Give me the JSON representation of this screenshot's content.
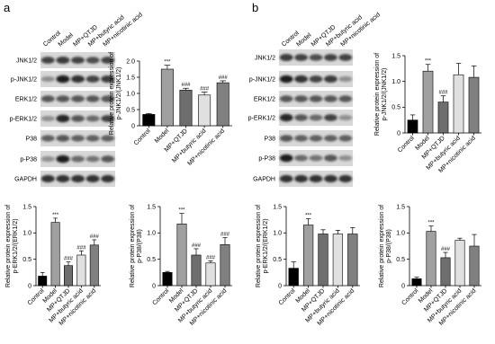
{
  "blots": [
    {
      "label": "a",
      "lanes": [
        "Control",
        "Model",
        "MP+QTJD",
        "MP+butyric acid",
        "MP+nicotinic acid"
      ],
      "rows": [
        "JNK1/2",
        "p-JNK1/2",
        "ERK1/2",
        "p-ERK1/2",
        "P38",
        "p-P38",
        "GAPDH"
      ]
    },
    {
      "label": "b",
      "lanes": [
        "Control",
        "Model",
        "MP+QTJD",
        "MP+butyric acid",
        "MP+nicotinic acid"
      ],
      "rows": [
        "JNK1/2",
        "p-JNK1/2",
        "ERK1/2",
        "p-ERK1/2",
        "P38",
        "p-P38",
        "GAPDH"
      ]
    }
  ],
  "chart_data": [
    {
      "type": "bar",
      "ylabel": [
        "Relative protein expression of",
        "p-JNK1/2/(JNK1/2)"
      ],
      "categories": [
        "Control",
        "Model",
        "MP+QTJD",
        "MP+butyric acid",
        "MP+nicotinic acid"
      ],
      "values": [
        0.35,
        1.75,
        1.1,
        0.95,
        1.33
      ],
      "errors": [
        0.03,
        0.12,
        0.06,
        0.09,
        0.06
      ],
      "annotations": [
        null,
        "***",
        "###",
        "###",
        "###"
      ],
      "colors": [
        "#000000",
        "#a0a0a0",
        "#6e6e6e",
        "#e0e0e0",
        "#808080"
      ],
      "ylim": [
        0,
        2
      ],
      "yticks": [
        0,
        0.5,
        {
          "value": 1,
          "label": "1.0"
        },
        1.5,
        {
          "value": 2,
          "label": "2.0"
        }
      ]
    },
    {
      "type": "bar",
      "ylabel": [
        "Relative protein expression of",
        "p-ERK1/2/(ERK1/2)"
      ],
      "categories": [
        "Control",
        "Model",
        "MP+QTJD",
        "MP+butyric acid",
        "MP+nicotinic acid"
      ],
      "values": [
        0.18,
        1.2,
        0.38,
        0.58,
        0.77
      ],
      "errors": [
        0.07,
        0.08,
        0.07,
        0.08,
        0.1
      ],
      "annotations": [
        null,
        "***",
        "###",
        "###",
        "###"
      ],
      "colors": [
        "#000000",
        "#a0a0a0",
        "#6e6e6e",
        "#e0e0e0",
        "#808080"
      ],
      "ylim": [
        0,
        1.5
      ],
      "yticks": [
        0,
        0.5,
        {
          "value": 1,
          "label": "1.0"
        },
        1.5
      ]
    },
    {
      "type": "bar",
      "ylabel": [
        "Relative protein expression of",
        "p-P38/(P38)"
      ],
      "categories": [
        "Control",
        "Model",
        "MP+QTJD",
        "MP+butyric acid",
        "MP+nicotinic acid"
      ],
      "values": [
        0.25,
        1.17,
        0.58,
        0.43,
        0.78
      ],
      "errors": [
        0.02,
        0.2,
        0.12,
        0.04,
        0.13
      ],
      "annotations": [
        null,
        "***",
        "###",
        "###",
        "###"
      ],
      "colors": [
        "#000000",
        "#a0a0a0",
        "#6e6e6e",
        "#e0e0e0",
        "#808080"
      ],
      "ylim": [
        0,
        1.5
      ],
      "yticks": [
        0,
        0.5,
        {
          "value": 1,
          "label": "1.0"
        },
        1.5
      ]
    },
    {
      "type": "bar",
      "ylabel": [
        "Relative protein expression of",
        "p-JNK1/2/(JNK1/2)"
      ],
      "categories": [
        "Control",
        "Model",
        "MP+QTJD",
        "MP+butyric acid",
        "MP+nicotinic acid"
      ],
      "values": [
        0.25,
        1.2,
        0.6,
        1.13,
        1.08
      ],
      "errors": [
        0.1,
        0.13,
        0.12,
        0.22,
        0.22
      ],
      "annotations": [
        null,
        "***",
        "###",
        null,
        null
      ],
      "colors": [
        "#000000",
        "#a0a0a0",
        "#6e6e6e",
        "#e0e0e0",
        "#808080"
      ],
      "ylim": [
        0,
        1.5
      ],
      "yticks": [
        0,
        0.5,
        {
          "value": 1,
          "label": "1.0"
        },
        1.5
      ]
    },
    {
      "type": "bar",
      "ylabel": [
        "Relative protein expression of",
        "p-ERK1/2/(ERK1/2)"
      ],
      "categories": [
        "Control",
        "Model",
        "MP+QTJD",
        "MP+butyric acid",
        "MP+nicotinic acid"
      ],
      "values": [
        0.33,
        1.15,
        0.98,
        0.98,
        0.98
      ],
      "errors": [
        0.12,
        0.12,
        0.08,
        0.07,
        0.12
      ],
      "annotations": [
        null,
        "***",
        null,
        null,
        null
      ],
      "colors": [
        "#000000",
        "#a0a0a0",
        "#6e6e6e",
        "#e0e0e0",
        "#808080"
      ],
      "ylim": [
        0,
        1.5
      ],
      "yticks": [
        0,
        0.5,
        {
          "value": 1,
          "label": "1.0"
        },
        1.5
      ]
    },
    {
      "type": "bar",
      "ylabel": [
        "Relative protein expression of",
        "p-P38/(P38)"
      ],
      "categories": [
        "Control",
        "Model",
        "MP+QTJD",
        "MP+butyric acid",
        "MP+nicotinic acid"
      ],
      "values": [
        0.13,
        1.03,
        0.53,
        0.86,
        0.75
      ],
      "errors": [
        0.03,
        0.1,
        0.1,
        0.04,
        0.22
      ],
      "annotations": [
        null,
        "***",
        "###",
        null,
        null
      ],
      "colors": [
        "#000000",
        "#a0a0a0",
        "#6e6e6e",
        "#e0e0e0",
        "#808080"
      ],
      "ylim": [
        0,
        1.5
      ],
      "yticks": [
        0,
        0.5,
        {
          "value": 1,
          "label": "1.0"
        },
        1.5
      ]
    }
  ]
}
